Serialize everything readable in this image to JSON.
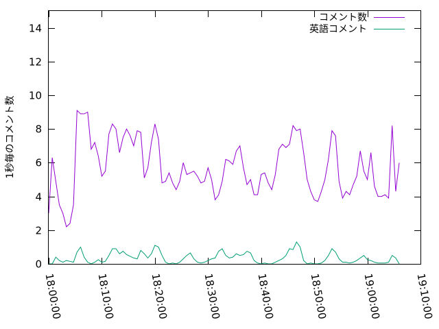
{
  "chart_data": {
    "type": "line",
    "title": "",
    "xlabel": "",
    "ylabel": "1秒毎のコメント数",
    "ylim": [
      0,
      15
    ],
    "yticks": [
      0,
      2,
      4,
      6,
      8,
      10,
      12,
      14
    ],
    "xlim": [
      "18:00:00",
      "19:10:00"
    ],
    "xticks": [
      "18:00:00",
      "18:10:00",
      "18:20:00",
      "18:30:00",
      "18:40:00",
      "18:50:00",
      "19:00:00",
      "19:10:00"
    ],
    "legend_position": "top-right",
    "interval_seconds": 40,
    "series": [
      {
        "name": "コメント数",
        "color": "#9400d3",
        "values": [
          3.0,
          6.3,
          4.9,
          3.5,
          3.0,
          2.2,
          2.4,
          3.5,
          9.1,
          8.9,
          8.9,
          9.0,
          6.8,
          7.2,
          6.4,
          5.2,
          5.5,
          7.7,
          8.3,
          8.0,
          6.6,
          7.5,
          8.0,
          7.6,
          7.0,
          7.9,
          7.8,
          5.1,
          5.7,
          7.2,
          8.3,
          7.4,
          4.8,
          4.9,
          5.4,
          4.8,
          4.4,
          4.9,
          6.0,
          5.3,
          5.4,
          5.5,
          5.2,
          4.8,
          4.9,
          5.7,
          5.0,
          3.8,
          4.1,
          4.9,
          6.2,
          6.1,
          5.9,
          6.7,
          7.0,
          5.7,
          4.7,
          5.0,
          4.1,
          4.1,
          5.3,
          5.4,
          4.8,
          4.4,
          5.3,
          6.8,
          7.1,
          6.9,
          7.1,
          8.2,
          7.9,
          8.0,
          6.6,
          5.0,
          4.3,
          3.8,
          3.7,
          4.3,
          5.0,
          6.2,
          7.9,
          7.6,
          4.9,
          3.9,
          4.3,
          4.1,
          4.7,
          5.2,
          6.7,
          5.5,
          5.0,
          6.6,
          4.6,
          4.0,
          4.0,
          4.1,
          3.9,
          8.2,
          4.3,
          6.0
        ]
      },
      {
        "name": "英語コメント",
        "color": "#009e73",
        "values": [
          0.0,
          0.0,
          0.4,
          0.2,
          0.1,
          0.2,
          0.15,
          0.1,
          0.7,
          1.0,
          0.4,
          0.1,
          0.0,
          0.1,
          0.25,
          0.1,
          0.15,
          0.5,
          0.9,
          0.9,
          0.6,
          0.75,
          0.55,
          0.45,
          0.35,
          0.3,
          0.8,
          0.6,
          0.35,
          0.6,
          1.1,
          1.0,
          0.5,
          0.1,
          0.0,
          0.05,
          0.0,
          0.1,
          0.3,
          0.5,
          0.65,
          0.3,
          0.1,
          0.05,
          0.1,
          0.2,
          0.3,
          0.35,
          0.75,
          0.9,
          0.5,
          0.35,
          0.4,
          0.6,
          0.5,
          0.55,
          0.75,
          0.65,
          0.2,
          0.05,
          0.0,
          0.05,
          0.0,
          0.0,
          0.1,
          0.2,
          0.3,
          0.5,
          0.9,
          0.85,
          1.3,
          1.0,
          0.2,
          0.0,
          0.05,
          0.0,
          0.0,
          0.05,
          0.2,
          0.5,
          0.9,
          0.7,
          0.3,
          0.1,
          0.1,
          0.05,
          0.1,
          0.2,
          0.35,
          0.5,
          0.25,
          0.2,
          0.1,
          0.05,
          0.05,
          0.05,
          0.1,
          0.5,
          0.35,
          0.0
        ]
      }
    ]
  }
}
